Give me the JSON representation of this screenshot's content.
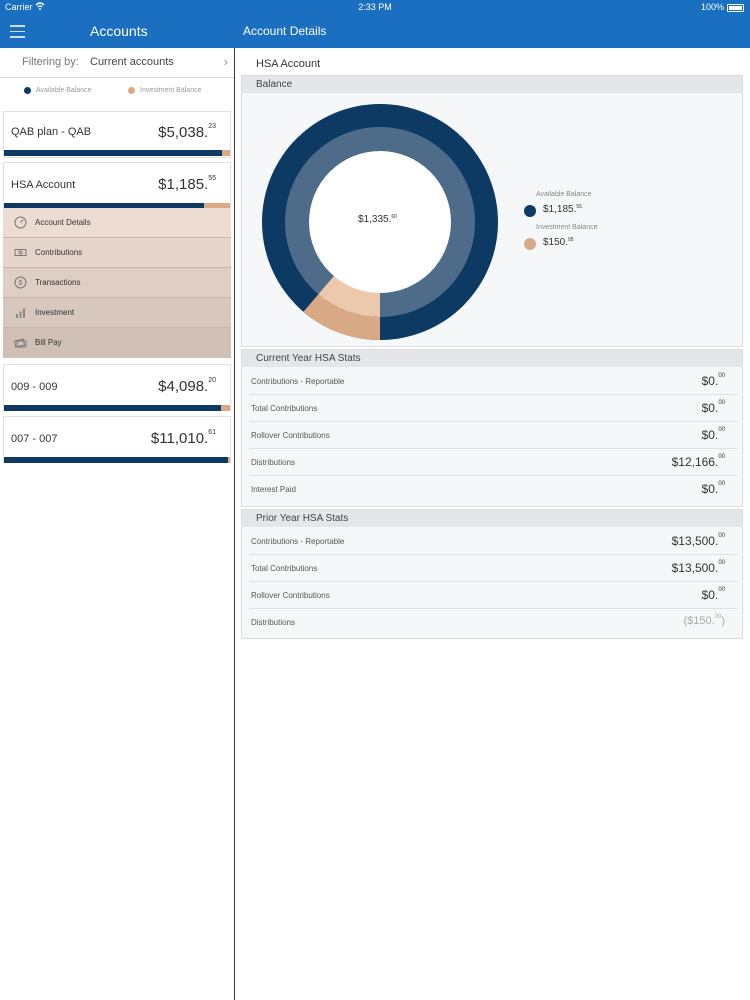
{
  "status_bar": {
    "carrier": "Carrier",
    "time": "2:33 PM",
    "battery": "100%"
  },
  "nav": {
    "left_title": "Accounts",
    "right_title": "Account Details"
  },
  "filter": {
    "label": "Filtering by:",
    "value": "Current accounts"
  },
  "legend": {
    "available": "Available Balance",
    "investment": "Investment Balance"
  },
  "colors": {
    "brand_blue": "#1a6fc0",
    "available": "#0d3a63",
    "available_light": "#4e6c8a",
    "investment": "#d9a986",
    "investment_light": "#ecc9ad"
  },
  "accounts": [
    {
      "name": "QAB plan - QAB",
      "amount_main": "$5,038.",
      "amount_cents": "23",
      "available_fraction": 0.965
    },
    {
      "name": "HSA Account",
      "amount_main": "$1,185.",
      "amount_cents": "55",
      "available_fraction": 0.885
    },
    {
      "name": "009 - 009",
      "amount_main": "$4,098.",
      "amount_cents": "20",
      "available_fraction": 0.96
    },
    {
      "name": "007 - 007",
      "amount_main": "$11,010.",
      "amount_cents": "61",
      "available_fraction": 0.99
    }
  ],
  "submenu": [
    {
      "label": "Account Details",
      "icon": "gauge-icon"
    },
    {
      "label": "Contributions",
      "icon": "cash-icon"
    },
    {
      "label": "Transactions",
      "icon": "dollar-circle-icon"
    },
    {
      "label": "Investment",
      "icon": "bar-chart-icon"
    },
    {
      "label": "Bill Pay",
      "icon": "bill-icon"
    }
  ],
  "detail": {
    "title": "HSA Account",
    "balance_header": "Balance",
    "total_main": "$1,335.",
    "total_cents": "60",
    "available_label": "Available Balance",
    "available_main": "$1,185.",
    "available_cents": "55",
    "investment_label": "Investment Balance",
    "investment_main": "$150.",
    "investment_cents": "05",
    "available_value": 1185.55,
    "investment_value": 150.05
  },
  "current_year": {
    "header": "Current Year HSA Stats",
    "rows": [
      {
        "label": "Contributions - Reportable",
        "main": "$0.",
        "cents": "00"
      },
      {
        "label": "Total Contributions",
        "main": "$0.",
        "cents": "00"
      },
      {
        "label": "Rollover Contributions",
        "main": "$0.",
        "cents": "00"
      },
      {
        "label": "Distributions",
        "main": "$12,166.",
        "cents": "00"
      },
      {
        "label": "Interest Paid",
        "main": "$0.",
        "cents": "00"
      }
    ]
  },
  "prior_year": {
    "header": "Prior Year HSA Stats",
    "rows": [
      {
        "label": "Contributions - Reportable",
        "main": "$13,500.",
        "cents": "00"
      },
      {
        "label": "Total Contributions",
        "main": "$13,500.",
        "cents": "00"
      },
      {
        "label": "Rollover Contributions",
        "main": "$0.",
        "cents": "00"
      },
      {
        "label": "Distributions",
        "main": "($150.",
        "cents": "00",
        "suffix": ")"
      }
    ]
  }
}
